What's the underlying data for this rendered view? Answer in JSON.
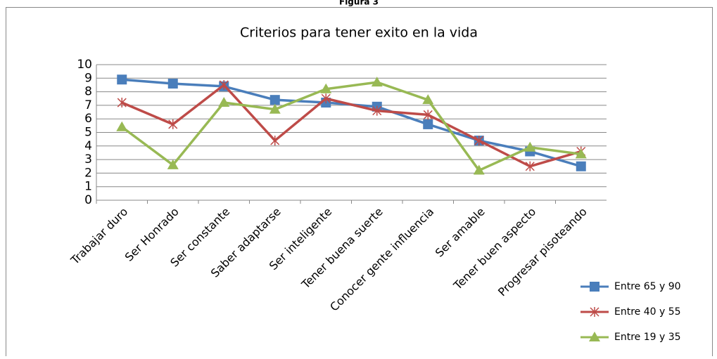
{
  "chart_data": {
    "type": "line",
    "caption": "Figura 3",
    "title": "Criterios para tener exito en la vida",
    "categories": [
      "Trabajar duro",
      "Ser Honrado",
      "Ser constante",
      "Saber adaptarse",
      "Ser inteligente",
      "Tener buena suerte",
      "Conocer gente influencia",
      "Ser amable",
      "Tener buen aspecto",
      "Progresar pisoteando"
    ],
    "series": [
      {
        "name": "Entre 65 y 90",
        "color": "#4a7ebb",
        "marker": "square",
        "values": [
          8.9,
          8.6,
          8.4,
          7.4,
          7.2,
          6.9,
          5.6,
          4.4,
          3.6,
          2.5
        ]
      },
      {
        "name": "Entre 40 y 55",
        "color": "#be4b48",
        "marker": "star",
        "values": [
          7.2,
          5.6,
          8.5,
          4.4,
          7.5,
          6.6,
          6.3,
          4.4,
          2.5,
          3.6
        ]
      },
      {
        "name": "Entre 19 y 35",
        "color": "#98b954",
        "marker": "triangle",
        "values": [
          5.4,
          2.6,
          7.2,
          6.7,
          8.2,
          8.7,
          7.4,
          2.2,
          3.9,
          3.4
        ]
      }
    ],
    "ylim": [
      0,
      10
    ],
    "yticks": [
      0,
      1,
      2,
      3,
      4,
      5,
      6,
      7,
      8,
      9,
      10
    ],
    "grid": true,
    "legend": "bottom-right"
  }
}
